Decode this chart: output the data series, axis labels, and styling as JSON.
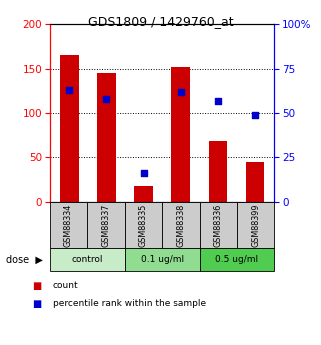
{
  "title": "GDS1809 / 1429760_at",
  "samples": [
    "GSM88334",
    "GSM88337",
    "GSM88335",
    "GSM88338",
    "GSM88336",
    "GSM88399"
  ],
  "bar_values": [
    165,
    145,
    18,
    152,
    68,
    45
  ],
  "dot_values": [
    63,
    58,
    16,
    62,
    57,
    49
  ],
  "groups": [
    {
      "label": "control",
      "color": "#c8ecc8",
      "count": 2
    },
    {
      "label": "0.1 ug/ml",
      "color": "#90dc90",
      "count": 2
    },
    {
      "label": "0.5 ug/ml",
      "color": "#50cc50",
      "count": 2
    }
  ],
  "bar_color": "#cc0000",
  "dot_color": "#0000cc",
  "ylim_left": [
    0,
    200
  ],
  "ylim_right": [
    0,
    100
  ],
  "yticks_left": [
    0,
    50,
    100,
    150,
    200
  ],
  "yticks_right": [
    0,
    25,
    50,
    75,
    100
  ],
  "ytick_labels_right": [
    "0",
    "25",
    "50",
    "75",
    "100%"
  ],
  "bar_width": 0.5,
  "bg_color": "#ffffff",
  "label_bg_color": "#cccccc",
  "legend_count": "count",
  "legend_percentile": "percentile rank within the sample"
}
